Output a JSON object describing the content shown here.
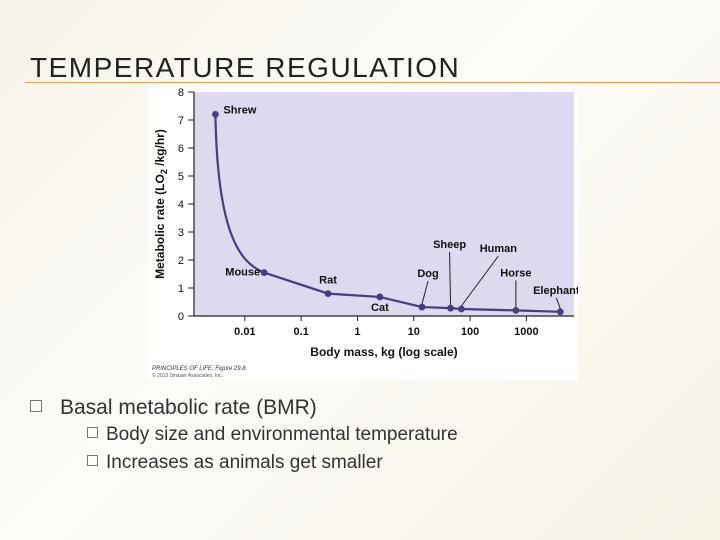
{
  "slide": {
    "title": "TEMPERATURE REGULATION"
  },
  "bullets": {
    "main": "Basal metabolic rate (BMR)",
    "sub": [
      "Body size and environmental temperature",
      "Increases as animals get smaller"
    ]
  },
  "chart_data": {
    "type": "line",
    "xscale": "log",
    "xlabel": "Body mass, kg (log scale)",
    "ylabel_parts": [
      "Metabolic rate (LO",
      "2",
      " /kg/hr)"
    ],
    "ylim": [
      0,
      8
    ],
    "yticks": [
      "0",
      "1",
      "2",
      "3",
      "4",
      "5",
      "6",
      "7",
      "8"
    ],
    "xticks": [
      {
        "value": 0.01,
        "label": "0.01"
      },
      {
        "value": 0.1,
        "label": "0.1"
      },
      {
        "value": 1,
        "label": "1"
      },
      {
        "value": 10,
        "label": "10"
      },
      {
        "value": 100,
        "label": "100"
      },
      {
        "value": 1000,
        "label": "1000"
      }
    ],
    "curve_color": "#4b3b82",
    "points": [
      {
        "label": "Shrew",
        "x": 0.003,
        "y": 7.2
      },
      {
        "label": "Mouse",
        "x": 0.022,
        "y": 1.55
      },
      {
        "label": "Rat",
        "x": 0.3,
        "y": 0.8
      },
      {
        "label": "Cat",
        "x": 2.5,
        "y": 0.68
      },
      {
        "label": "Dog",
        "x": 14,
        "y": 0.32
      },
      {
        "label": "Sheep",
        "x": 45,
        "y": 0.28
      },
      {
        "label": "Human",
        "x": 70,
        "y": 0.25
      },
      {
        "label": "Horse",
        "x": 650,
        "y": 0.2
      },
      {
        "label": "Elephant",
        "x": 4000,
        "y": 0.15
      }
    ],
    "credit_lines": [
      "PRINCIPLES OF LIFE, Figure 29.8",
      "© 2012 Sinauer Associates, Inc."
    ]
  },
  "colors": {
    "accent_rule": "#d8a64c",
    "curve": "#4b3b82"
  }
}
